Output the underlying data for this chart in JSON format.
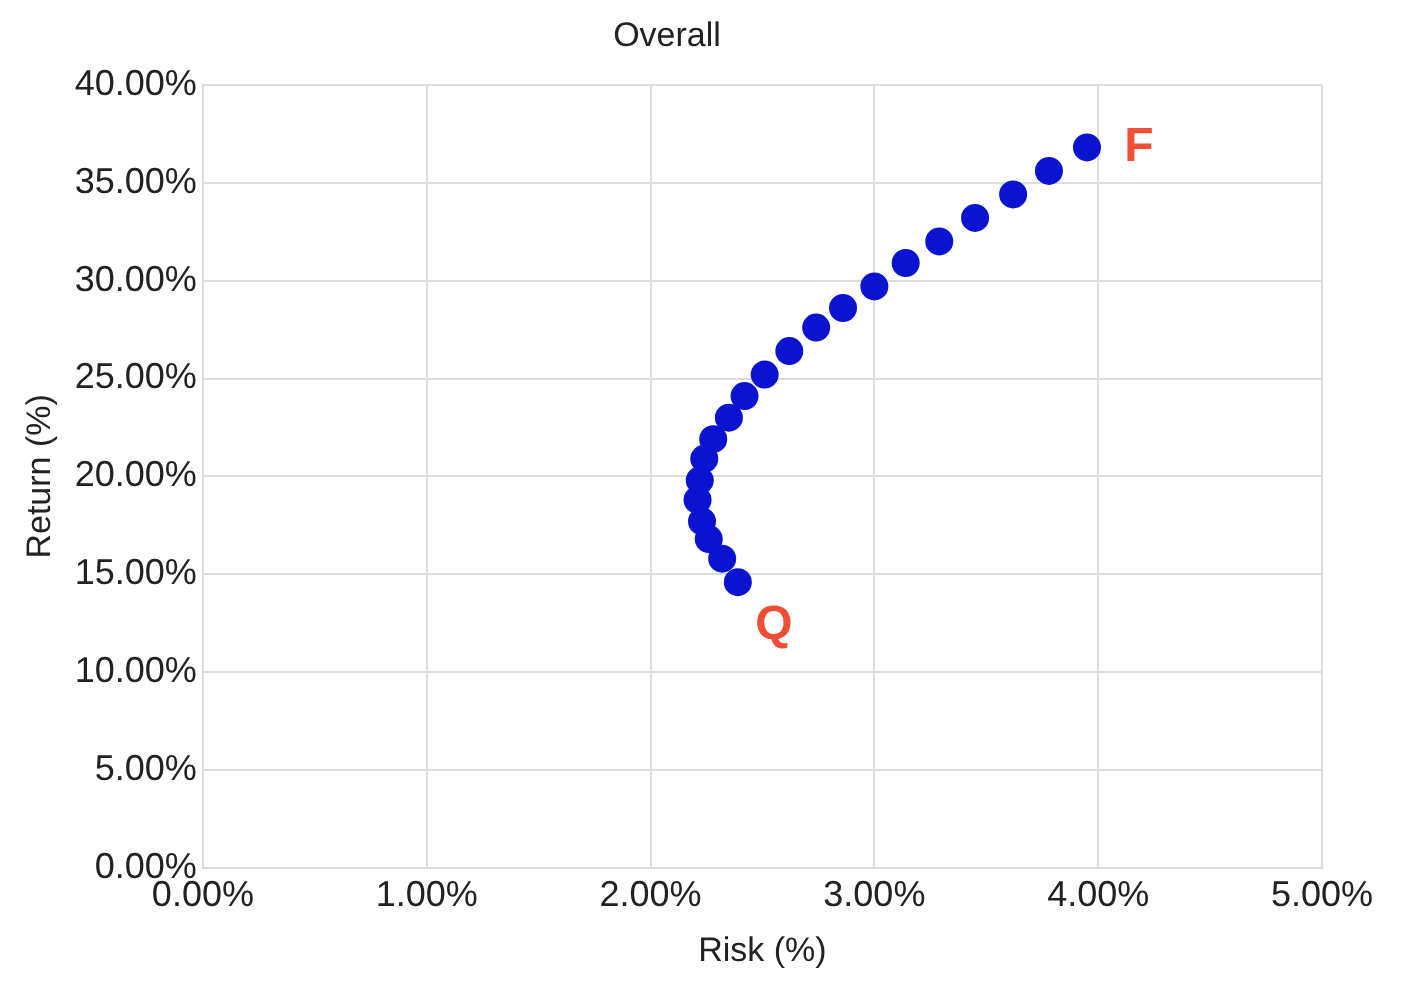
{
  "chart_data": {
    "type": "scatter",
    "title": "Overall",
    "xlabel": "Risk (%)",
    "ylabel": "Return (%)",
    "x": [
      2.39,
      2.32,
      2.26,
      2.23,
      2.21,
      2.22,
      2.24,
      2.28,
      2.35,
      2.42,
      2.51,
      2.62,
      2.74,
      2.86,
      3.0,
      3.14,
      3.29,
      3.45,
      3.62,
      3.78,
      3.95
    ],
    "values": [
      14.6,
      15.8,
      16.8,
      17.7,
      18.8,
      19.8,
      20.9,
      21.9,
      23.0,
      24.1,
      25.2,
      26.4,
      27.6,
      28.6,
      29.7,
      30.9,
      32.0,
      33.2,
      34.4,
      35.6,
      36.8
    ],
    "color": "#0a14d0",
    "marker": "circle",
    "grid": true,
    "xlim": [
      0,
      5
    ],
    "ylim": [
      0,
      40
    ],
    "xticks": [
      {
        "value": 0,
        "label": "0.00%"
      },
      {
        "value": 1,
        "label": "1.00%"
      },
      {
        "value": 2,
        "label": "2.00%"
      },
      {
        "value": 3,
        "label": "3.00%"
      },
      {
        "value": 4,
        "label": "4.00%"
      },
      {
        "value": 5,
        "label": "5.00%"
      }
    ],
    "yticks": [
      {
        "value": 0,
        "label": "0.00%"
      },
      {
        "value": 5,
        "label": "5.00%"
      },
      {
        "value": 10,
        "label": "10.00%"
      },
      {
        "value": 15,
        "label": "15.00%"
      },
      {
        "value": 20,
        "label": "20.00%"
      },
      {
        "value": 25,
        "label": "25.00%"
      },
      {
        "value": 30,
        "label": "30.00%"
      },
      {
        "value": 35,
        "label": "35.00%"
      },
      {
        "value": 40,
        "label": "40.00%"
      }
    ],
    "annotations": [
      {
        "text": "F",
        "x": 3.95,
        "y": 36.8
      },
      {
        "text": "Q",
        "x": 2.39,
        "y": 14.6
      }
    ]
  }
}
